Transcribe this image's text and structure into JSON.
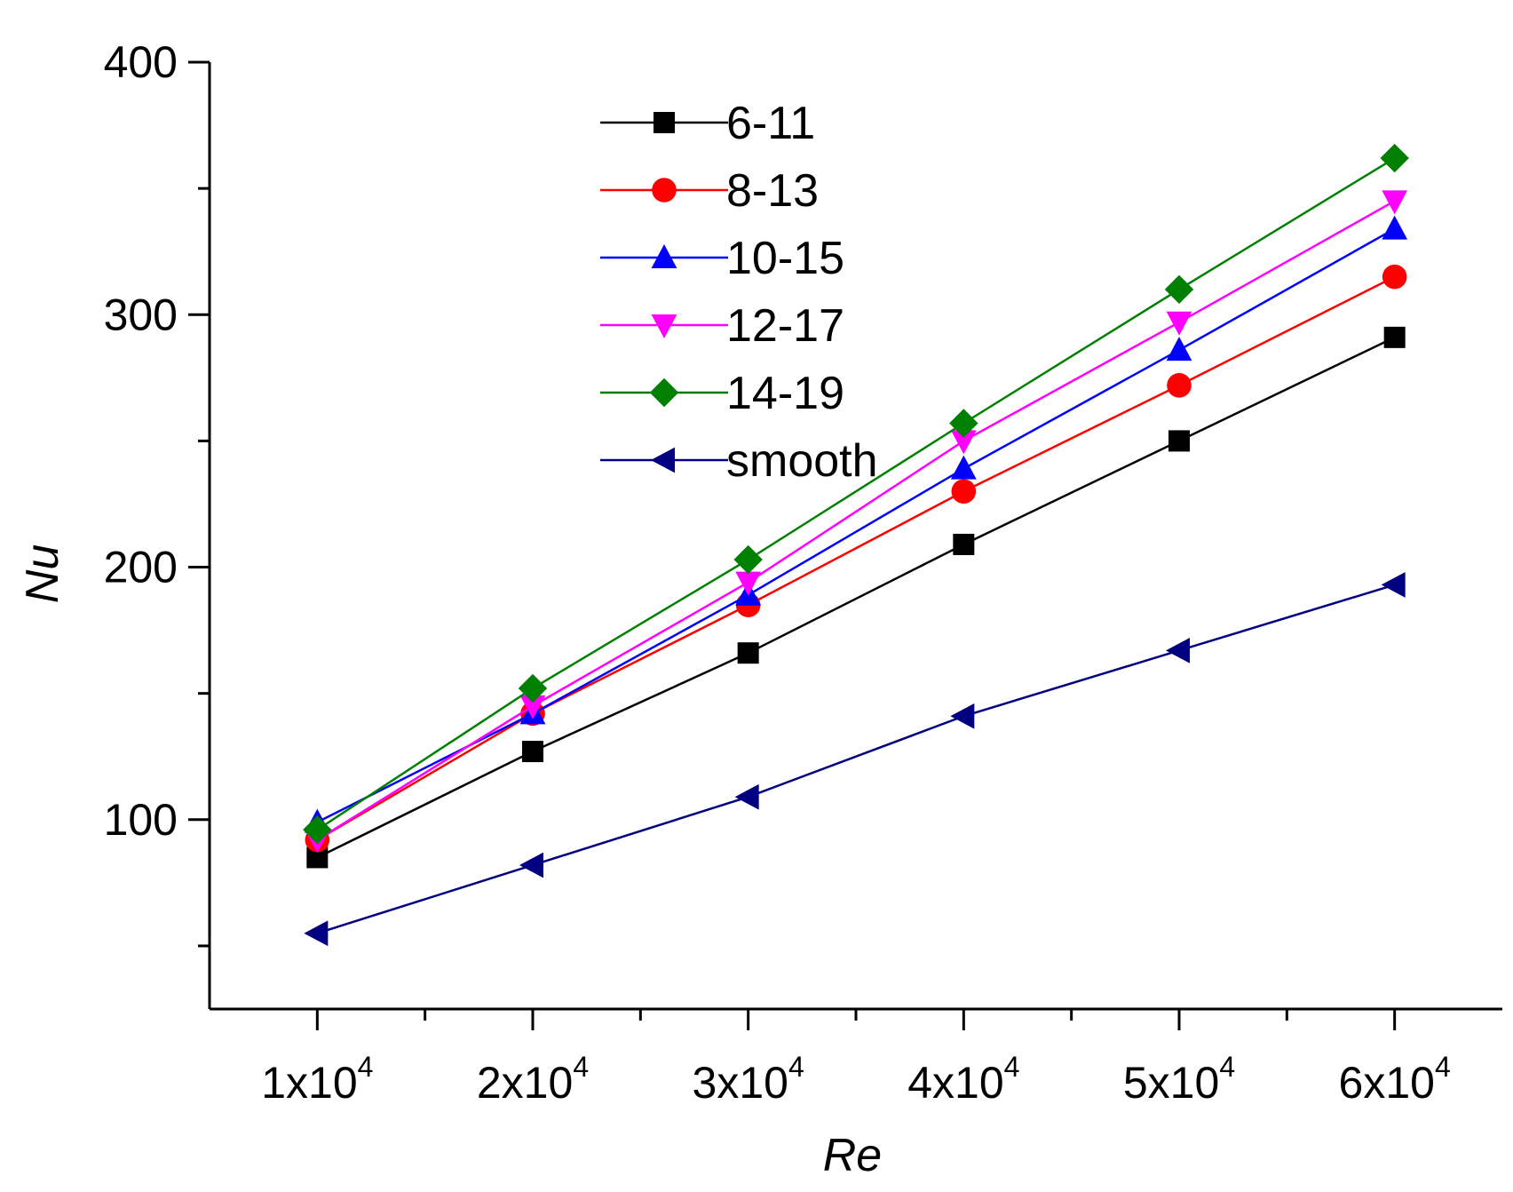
{
  "chart_data": {
    "type": "line",
    "title": "",
    "xlabel": "Re",
    "ylabel": "Nu",
    "x": [
      10000,
      20000,
      30000,
      40000,
      50000,
      60000
    ],
    "x_tick_labels": [
      {
        "base": "1x10",
        "exp": "4"
      },
      {
        "base": "2x10",
        "exp": "4"
      },
      {
        "base": "3x10",
        "exp": "4"
      },
      {
        "base": "4x10",
        "exp": "4"
      },
      {
        "base": "5x10",
        "exp": "4"
      },
      {
        "base": "6x10",
        "exp": "4"
      }
    ],
    "xlim": [
      5000,
      65000
    ],
    "ylim": [
      25,
      400
    ],
    "y_ticks": [
      100,
      200,
      300,
      400
    ],
    "y_minor_ticks": [
      50,
      150,
      250,
      350
    ],
    "grid": false,
    "legend_position": "top-center",
    "series": [
      {
        "name": "6-11",
        "color": "#000000",
        "marker": "square",
        "values": [
          85,
          127,
          166,
          209,
          250,
          291
        ]
      },
      {
        "name": "8-13",
        "color": "#ff0000",
        "marker": "circle",
        "values": [
          92,
          142,
          185,
          230,
          272,
          315
        ]
      },
      {
        "name": "10-15",
        "color": "#0000ff",
        "marker": "triangle-up",
        "values": [
          99,
          142,
          189,
          239,
          286,
          334
        ]
      },
      {
        "name": "12-17",
        "color": "#ff00ff",
        "marker": "triangle-down",
        "values": [
          92,
          145,
          194,
          250,
          297,
          345
        ]
      },
      {
        "name": "14-19",
        "color": "#008000",
        "marker": "diamond",
        "values": [
          96,
          152,
          203,
          257,
          310,
          362
        ]
      },
      {
        "name": "smooth",
        "color": "#000080",
        "marker": "triangle-left",
        "values": [
          55,
          82,
          109,
          141,
          167,
          193
        ]
      }
    ]
  }
}
